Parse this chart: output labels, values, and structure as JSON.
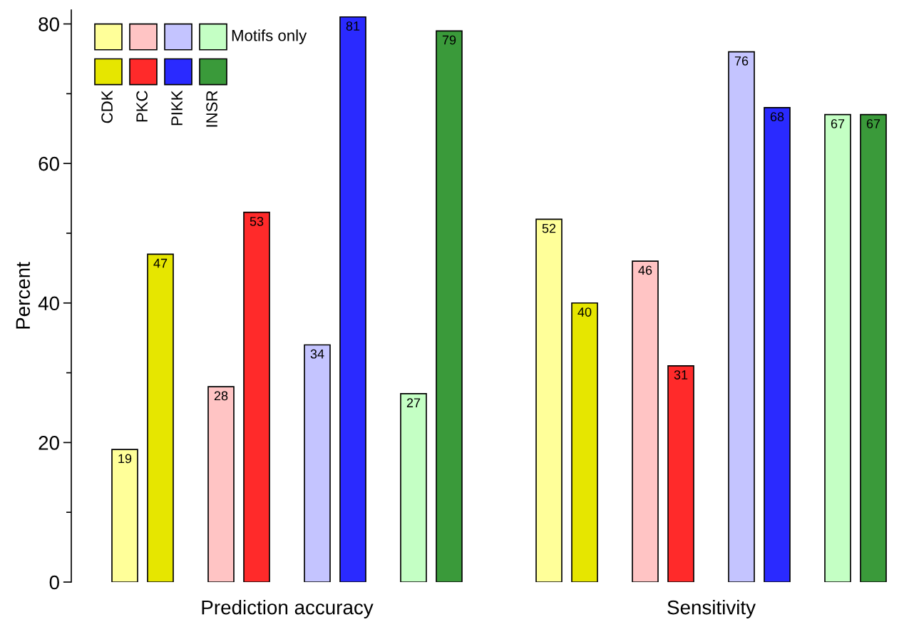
{
  "chart_data": {
    "type": "bar",
    "ylabel": "Percent",
    "categories": [
      "Prediction accuracy",
      "Sensitivity"
    ],
    "series": [
      {
        "color": "#ffff99",
        "values": [
          19,
          52
        ]
      },
      {
        "name": "CDK",
        "color": "#e6e600",
        "values": [
          47,
          40
        ]
      },
      {
        "color": "#ffc4c4",
        "values": [
          28,
          46
        ]
      },
      {
        "name": "PKC",
        "color": "#ff2a2a",
        "values": [
          53,
          31
        ]
      },
      {
        "color": "#c4c4ff",
        "values": [
          34,
          76
        ]
      },
      {
        "name": "PIKK",
        "color": "#2a2aff",
        "values": [
          81,
          68
        ]
      },
      {
        "color": "#c4ffc4",
        "values": [
          27,
          67
        ]
      },
      {
        "name": "INSR",
        "color": "#3a9a3a",
        "values": [
          79,
          67
        ]
      }
    ],
    "annotations": [
      "Motifs only"
    ],
    "ylim": [
      0,
      82
    ],
    "yticks": [
      0,
      20,
      40,
      60,
      80
    ],
    "data_labels": true,
    "legend": "top left",
    "grid": false
  }
}
